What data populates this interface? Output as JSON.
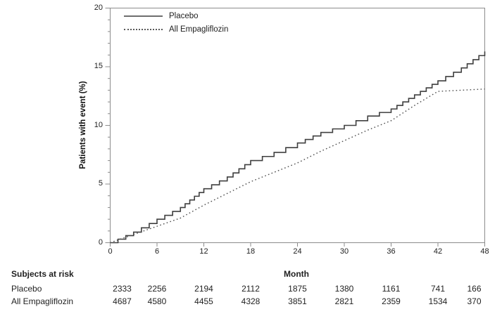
{
  "chart_data": {
    "type": "line",
    "title": "",
    "xlabel": "Month",
    "ylabel": "Patients with event (%)",
    "xlim": [
      0,
      48
    ],
    "ylim": [
      0,
      20
    ],
    "x_ticks": [
      0,
      6,
      12,
      18,
      24,
      30,
      36,
      42,
      48
    ],
    "y_ticks": [
      0,
      5,
      10,
      15,
      20
    ],
    "y_minor_tick_step": 1,
    "grid": false,
    "legend_position": "top-left-inside",
    "x": [
      0,
      3,
      6,
      9,
      12,
      15,
      18,
      21,
      24,
      27,
      30,
      33,
      36,
      39,
      42,
      45,
      48
    ],
    "series": [
      {
        "name": "Placebo",
        "style": "solid-step",
        "color": "#3f3f3f",
        "values": [
          0,
          0.9,
          2.0,
          3.0,
          4.6,
          5.6,
          7.0,
          7.7,
          8.5,
          9.4,
          10.0,
          10.8,
          11.4,
          12.6,
          13.8,
          14.9,
          16.3
        ]
      },
      {
        "name": "All Empagliflozin",
        "style": "dotted",
        "color": "#4d4d4d",
        "values": [
          0,
          0.7,
          1.4,
          2.1,
          3.2,
          4.2,
          5.2,
          6.0,
          6.8,
          7.8,
          8.7,
          9.6,
          10.4,
          11.7,
          12.9,
          13.0,
          13.1
        ]
      }
    ]
  },
  "at_risk": {
    "title": "Subjects at risk",
    "months": [
      0,
      6,
      12,
      18,
      24,
      30,
      36,
      42,
      48
    ],
    "rows": [
      {
        "label": "Placebo",
        "values": [
          "2333",
          "2256",
          "2194",
          "2112",
          "1875",
          "1380",
          "1161",
          "741",
          "166"
        ]
      },
      {
        "label": "All Empagliflozin",
        "values": [
          "4687",
          "4580",
          "4455",
          "4328",
          "3851",
          "2821",
          "2359",
          "1534",
          "370"
        ]
      }
    ]
  },
  "colors": {
    "frame": "#8c8c8c",
    "tick": "#8c8c8c",
    "placebo_line": "#3f3f3f",
    "empagliflozin_line": "#4d4d4d",
    "text": "#1f1f1f"
  }
}
